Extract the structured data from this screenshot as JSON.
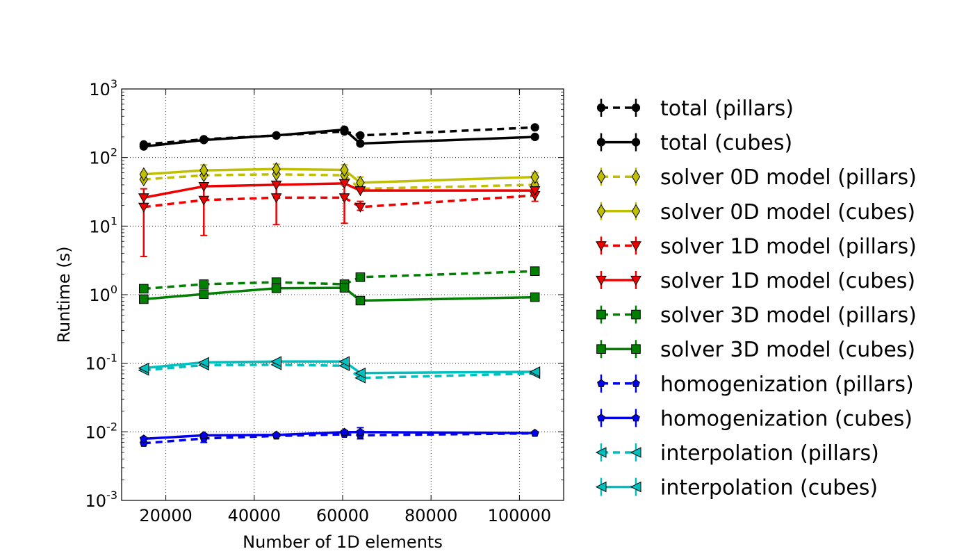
{
  "chart_data": {
    "type": "line",
    "title": "",
    "xlabel": "Number of 1D elements",
    "ylabel": "Runtime (s)",
    "xscale": "linear",
    "yscale": "log",
    "xlim": [
      10000,
      110000
    ],
    "ylim": [
      0.001,
      1000
    ],
    "grid": true,
    "legend_position": "outside-right",
    "x_ticks": [
      20000,
      40000,
      60000,
      80000,
      100000
    ],
    "x_tick_labels": [
      "20000",
      "40000",
      "60000",
      "80000",
      "100000"
    ],
    "y_ticks": [
      {
        "value": 1000,
        "base": "10",
        "exp": "3"
      },
      {
        "value": 100,
        "base": "10",
        "exp": "2"
      },
      {
        "value": 10,
        "base": "10",
        "exp": "1"
      },
      {
        "value": 1,
        "base": "10",
        "exp": "0"
      },
      {
        "value": 0.1,
        "base": "10",
        "exp": "-1"
      },
      {
        "value": 0.01,
        "base": "10",
        "exp": "-2"
      },
      {
        "value": 0.001,
        "base": "10",
        "exp": "-3"
      }
    ],
    "series": [
      {
        "name": "total (pillars)",
        "color": "#000000",
        "dash": "dashed",
        "marker": "circle",
        "x": [
          15000,
          28600,
          45000,
          60400,
          64000,
          103500
        ],
        "y": [
          155,
          185,
          210,
          240,
          210,
          275
        ],
        "err_lo": [
          null,
          null,
          null,
          null,
          null,
          null
        ],
        "err_hi": [
          null,
          null,
          null,
          null,
          null,
          null
        ]
      },
      {
        "name": "total (cubes)",
        "color": "#000000",
        "dash": "solid",
        "marker": "circle",
        "x": [
          15000,
          28600,
          45000,
          60400,
          64000,
          103500
        ],
        "y": [
          145,
          180,
          210,
          255,
          160,
          200
        ],
        "err_lo": [
          null,
          null,
          null,
          null,
          null,
          null
        ],
        "err_hi": [
          null,
          null,
          null,
          null,
          null,
          null
        ]
      },
      {
        "name": "solver 0D model (pillars)",
        "color": "#bfbf00",
        "dash": "dashed",
        "marker": "diamond",
        "x": [
          15000,
          28600,
          45000,
          60400,
          64000,
          103500
        ],
        "y": [
          48,
          55,
          57,
          55,
          35,
          40
        ],
        "err_lo": [
          null,
          null,
          null,
          null,
          null,
          null
        ],
        "err_hi": [
          null,
          null,
          null,
          null,
          null,
          null
        ]
      },
      {
        "name": "solver 0D model (cubes)",
        "color": "#bfbf00",
        "dash": "solid",
        "marker": "diamond",
        "x": [
          15000,
          28600,
          45000,
          60400,
          64000,
          103500
        ],
        "y": [
          57,
          65,
          68,
          66,
          43,
          52
        ],
        "err_lo": [
          null,
          52,
          56,
          55,
          36,
          45
        ],
        "err_hi": [
          null,
          78,
          80,
          78,
          52,
          60
        ]
      },
      {
        "name": "solver 1D model (pillars)",
        "color": "#ee0000",
        "dash": "dashed",
        "marker": "triangle-down",
        "x": [
          15000,
          28600,
          45000,
          60400,
          64000,
          103500
        ],
        "y": [
          19,
          24,
          26,
          26,
          19,
          28
        ],
        "err_lo": [
          3.6,
          7.3,
          10.5,
          11,
          17,
          23
        ],
        "err_hi": [
          35,
          40,
          40,
          40,
          23,
          32
        ]
      },
      {
        "name": "solver 1D model (cubes)",
        "color": "#ee0000",
        "dash": "solid",
        "marker": "triangle-down",
        "x": [
          15000,
          28600,
          45000,
          60400,
          64000,
          103500
        ],
        "y": [
          26,
          38,
          40,
          42,
          33,
          33
        ],
        "err_lo": [
          null,
          null,
          null,
          null,
          null,
          null
        ],
        "err_hi": [
          null,
          null,
          null,
          null,
          null,
          null
        ]
      },
      {
        "name": "solver 3D model (pillars)",
        "color": "#007f00",
        "dash": "dashed",
        "marker": "square",
        "x": [
          15000,
          28600,
          45000,
          60400,
          64000,
          103500
        ],
        "y": [
          1.22,
          1.42,
          1.52,
          1.42,
          1.8,
          2.2
        ],
        "err_lo": [
          null,
          null,
          null,
          null,
          null,
          null
        ],
        "err_hi": [
          null,
          null,
          null,
          null,
          null,
          null
        ]
      },
      {
        "name": "solver 3D model (cubes)",
        "color": "#007f00",
        "dash": "solid",
        "marker": "square",
        "x": [
          15000,
          28600,
          45000,
          60400,
          64000,
          103500
        ],
        "y": [
          0.86,
          1.02,
          1.24,
          1.26,
          0.82,
          0.92
        ],
        "err_lo": [
          null,
          null,
          null,
          null,
          null,
          null
        ],
        "err_hi": [
          null,
          null,
          null,
          null,
          null,
          null
        ]
      },
      {
        "name": "homogenization (pillars)",
        "color": "#0000ee",
        "dash": "dashed",
        "marker": "pentagon",
        "x": [
          15000,
          28600,
          45000,
          60400,
          64000,
          103500
        ],
        "y": [
          0.0068,
          0.008,
          0.0087,
          0.0092,
          0.0089,
          0.0095
        ],
        "err_lo": [
          null,
          0.007,
          null,
          null,
          0.0079,
          null
        ],
        "err_hi": [
          null,
          0.0091,
          null,
          null,
          0.0099,
          null
        ]
      },
      {
        "name": "homogenization (cubes)",
        "color": "#0000ee",
        "dash": "solid",
        "marker": "pentagon",
        "x": [
          15000,
          28600,
          45000,
          60400,
          64000,
          103500
        ],
        "y": [
          0.0079,
          0.0089,
          0.009,
          0.0099,
          0.0099,
          0.0096
        ],
        "err_lo": [
          null,
          null,
          null,
          null,
          0.0088,
          null
        ],
        "err_hi": [
          null,
          null,
          null,
          null,
          0.0115,
          null
        ]
      },
      {
        "name": "interpolation (pillars)",
        "color": "#00bfbf",
        "dash": "dashed",
        "marker": "triangle-left",
        "x": [
          15000,
          28600,
          45000,
          60400,
          64000,
          103500
        ],
        "y": [
          0.079,
          0.094,
          0.095,
          0.092,
          0.061,
          0.071
        ],
        "err_lo": [
          null,
          null,
          null,
          null,
          null,
          null
        ],
        "err_hi": [
          null,
          null,
          null,
          null,
          null,
          null
        ]
      },
      {
        "name": "interpolation (cubes)",
        "color": "#00bfbf",
        "dash": "solid",
        "marker": "triangle-left",
        "x": [
          15000,
          28600,
          45000,
          60400,
          64000,
          103500
        ],
        "y": [
          0.085,
          0.103,
          0.106,
          0.106,
          0.072,
          0.075
        ],
        "err_lo": [
          null,
          null,
          null,
          null,
          null,
          null
        ],
        "err_hi": [
          null,
          null,
          null,
          null,
          null,
          null
        ]
      }
    ]
  }
}
